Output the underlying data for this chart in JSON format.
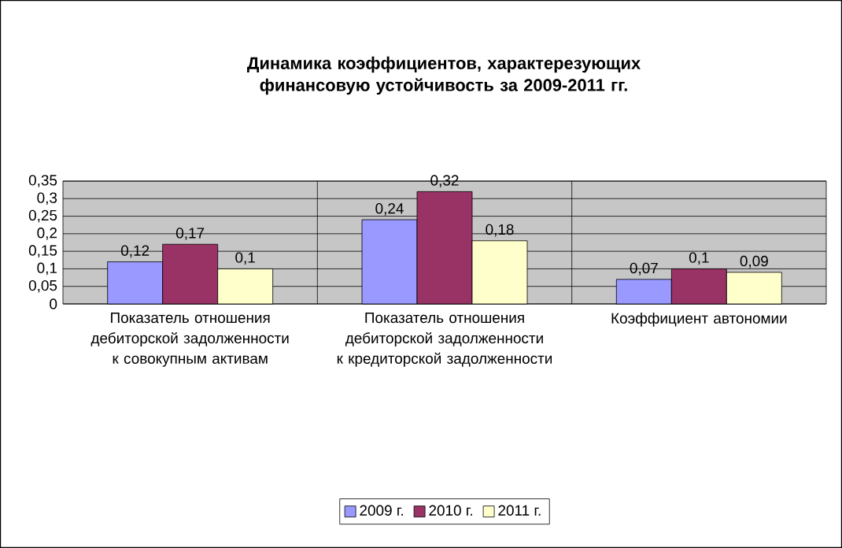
{
  "chart_data": {
    "type": "bar",
    "title": "Динамика коэффициентов, характерезующих финансовую устойчивость за 2009-2011 гг.",
    "categories": [
      "Показатель отношения дебиторской задолженности к совокупным активам",
      "Показатель отношения дебиторской задолженности к кредиторской задолженности",
      "Коэффициент автономии"
    ],
    "series": [
      {
        "name": "2009 г.",
        "color": "#9999ff",
        "values": [
          0.12,
          0.24,
          0.07
        ],
        "value_labels": [
          "0,12",
          "0,24",
          "0,07"
        ]
      },
      {
        "name": "2010 г.",
        "color": "#993366",
        "values": [
          0.17,
          0.32,
          0.1
        ],
        "value_labels": [
          "0,17",
          "0,32",
          "0,1"
        ]
      },
      {
        "name": "2011 г.",
        "color": "#ffffcc",
        "values": [
          0.1,
          0.18,
          0.09
        ],
        "value_labels": [
          "0,1",
          "0,18",
          "0,09"
        ]
      }
    ],
    "ylim": [
      0,
      0.35
    ],
    "yticks": [
      0,
      {
        "value": 0.05,
        "label": "0,05"
      },
      {
        "value": 0.1,
        "label": "0,1"
      },
      {
        "value": 0.15,
        "label": "0,15"
      },
      {
        "value": 0.2,
        "label": "0,2"
      },
      {
        "value": 0.25,
        "label": "0,25"
      },
      {
        "value": 0.3,
        "label": "0,3"
      },
      {
        "value": 0.35,
        "label": "0,35"
      }
    ],
    "grid": "y",
    "legend": "bottom"
  }
}
